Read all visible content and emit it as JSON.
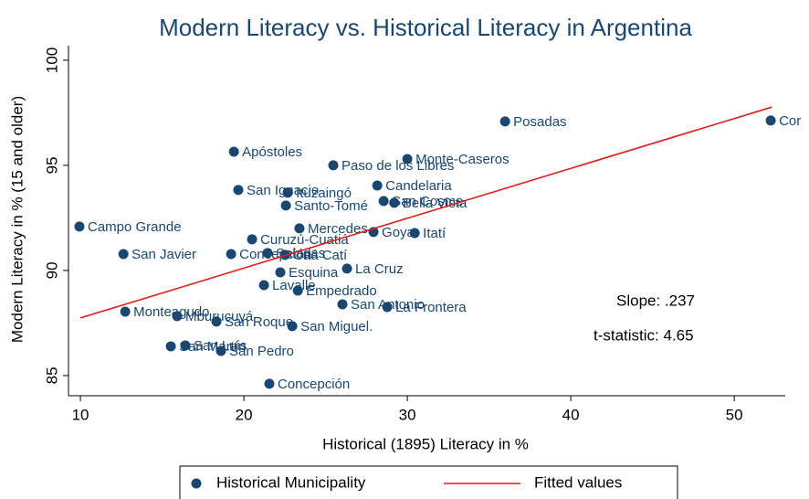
{
  "chart_data": {
    "type": "scatter",
    "title": "Modern Literacy vs. Historical Literacy in Argentina",
    "xlabel": "Historical (1895) Literacy in %",
    "ylabel": "Modern Literacy in % (15 and older)",
    "xlim": [
      9.27,
      53.12
    ],
    "ylim": [
      84.04,
      100.5
    ],
    "xticks": [
      10,
      20,
      30,
      40,
      50
    ],
    "yticks": [
      85,
      90,
      95,
      100
    ],
    "series": [
      {
        "name": "Historical Municipality",
        "color": "#1a476f",
        "labels": [
          "Posadas",
          "Cor",
          "Monte-Caseros",
          "Paso de los Libres",
          "Apóstoles",
          "San Ignacio",
          "Ituzaingó",
          "Candelaria",
          "San Cosme",
          "Bella Vista",
          "Santo-Tomé",
          "Campo Grande",
          "Mercedes",
          "Goya",
          "Itatí",
          "Curuzú-Cuatiá",
          "San Javier",
          "Concepción",
          "Saladas",
          "Caá Catí",
          "Esquina",
          "La Cruz",
          "Lavalle",
          "Empedrado",
          "San Antonio",
          "La Frontera",
          "Monteagudo",
          "Mburucuyá",
          "San Roque",
          "San Miguel.",
          "San Martín",
          "San Luis",
          "San Pedro",
          "Concepción"
        ],
        "x": [
          35.98,
          52.23,
          30.0,
          25.47,
          19.39,
          19.66,
          22.68,
          28.16,
          28.55,
          29.2,
          22.57,
          9.94,
          23.4,
          27.93,
          30.45,
          20.5,
          12.63,
          19.22,
          21.45,
          22.51,
          22.23,
          26.31,
          21.23,
          23.3,
          26.03,
          28.77,
          12.74,
          15.92,
          18.32,
          22.96,
          15.53,
          16.42,
          18.6,
          21.56
        ],
        "values": [
          97.09,
          97.13,
          95.3,
          95.0,
          95.65,
          93.83,
          93.7,
          94.04,
          93.3,
          93.22,
          93.09,
          92.09,
          92.0,
          91.83,
          91.78,
          91.48,
          90.78,
          90.78,
          90.83,
          90.74,
          89.91,
          90.09,
          89.3,
          89.04,
          88.39,
          88.26,
          88.04,
          87.83,
          87.57,
          87.35,
          86.39,
          86.43,
          86.17,
          84.61
        ]
      },
      {
        "name": "Fitted values",
        "type": "line",
        "color": "#e21a1a",
        "x": [
          10,
          52.3
        ],
        "values": [
          87.74,
          97.77
        ]
      }
    ],
    "annotations": [
      "Slope: .237",
      "t-statistic: 4.65"
    ]
  }
}
